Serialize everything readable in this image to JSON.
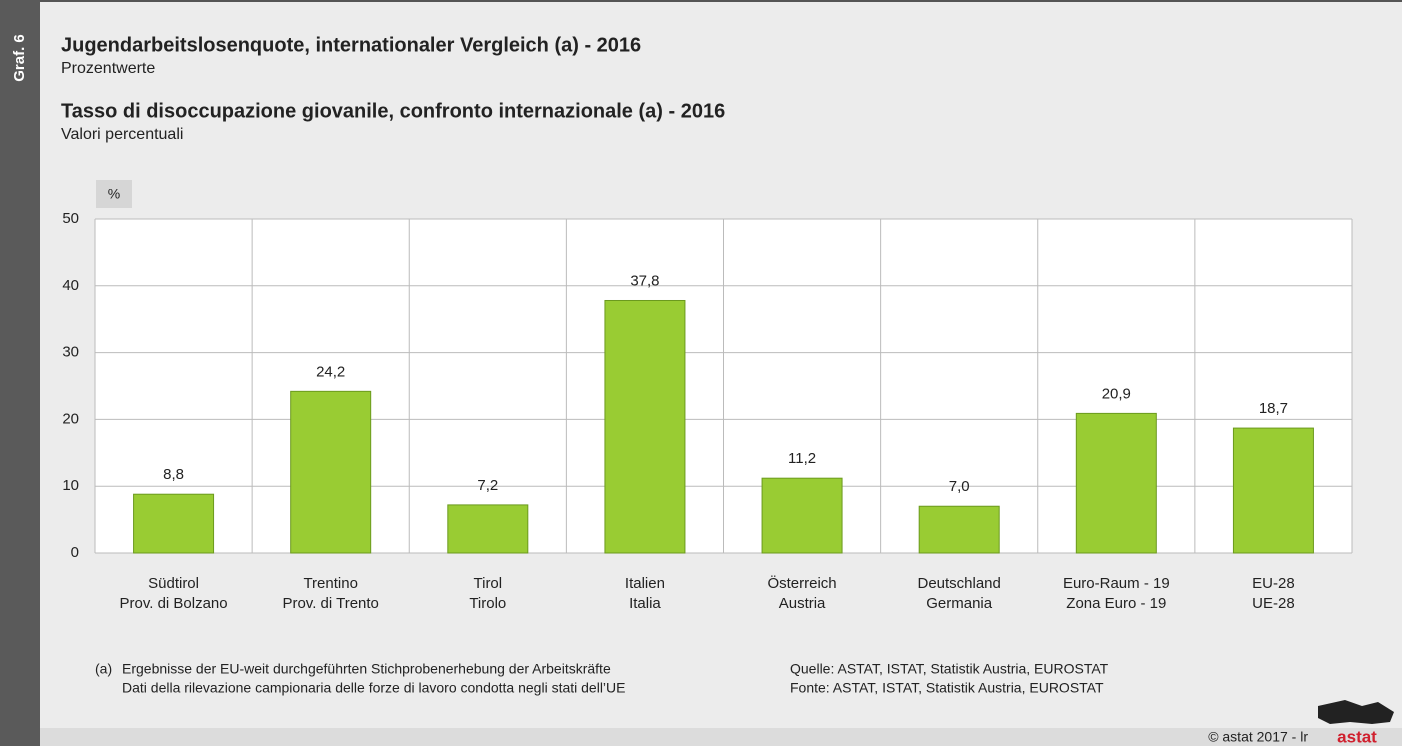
{
  "chart_data": {
    "type": "bar",
    "tag": "Graf. 6",
    "title": "Jugendarbeitslosenquote, internationaler Vergleich (a) - 2016",
    "subtitle": "Prozentwerte",
    "title2": "Tasso di disoccupazione giovanile, confronto internazionale (a) - 2016",
    "subtitle2": "Valori percentuali",
    "ylabel": "%",
    "categories": [
      [
        "Südtirol",
        "Prov. di Bolzano"
      ],
      [
        "Trentino",
        "Prov. di Trento"
      ],
      [
        "Tirol",
        "Tirolo"
      ],
      [
        "Italien",
        "Italia"
      ],
      [
        "Österreich",
        "Austria"
      ],
      [
        "Deutschland",
        "Germania"
      ],
      [
        "Euro-Raum - 19",
        "Zona Euro - 19"
      ],
      [
        "EU-28",
        "UE-28"
      ]
    ],
    "values": [
      8.8,
      24.2,
      7.2,
      37.8,
      11.2,
      7.0,
      20.9,
      18.7
    ],
    "value_labels": [
      "8,8",
      "24,2",
      "7,2",
      "37,8",
      "11,2",
      "7,0",
      "20,9",
      "18,7"
    ],
    "color": "#99cc33",
    "ylim": [
      0,
      50
    ],
    "yticks": [
      0,
      10,
      20,
      30,
      40,
      50
    ],
    "grid": true,
    "footnote": [
      "(a)",
      "Ergebnisse der EU-weit durchgeführten Stichprobenerhebung der Arbeitskräfte",
      "Dati della rilevazione campionaria delle forze di lavoro condotta negli stati dell’UE"
    ],
    "source": [
      "Quelle: ASTAT, ISTAT, Statistik Austria, EUROSTAT",
      "Fonte: ASTAT, ISTAT, Statistik Austria, EUROSTAT"
    ],
    "copyright": "©  astat 2017 - lr",
    "logo": "astat"
  }
}
